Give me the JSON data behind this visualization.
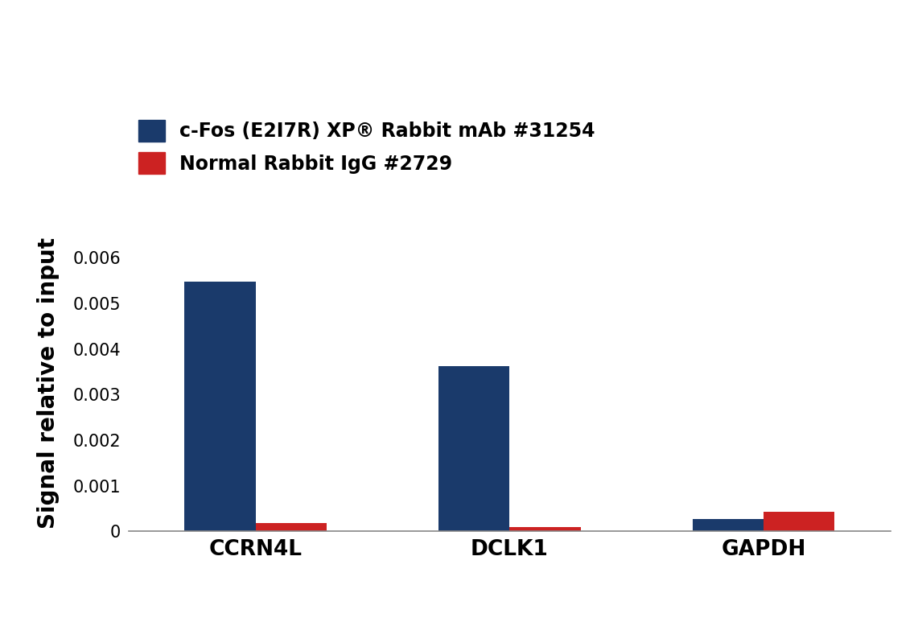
{
  "categories": [
    "CCRN4L",
    "DCLK1",
    "GAPDH"
  ],
  "blue_values": [
    0.00548,
    0.00363,
    0.000275
  ],
  "red_values": [
    0.00018,
    0.000105,
    0.000435
  ],
  "blue_color": "#1a3a6b",
  "red_color": "#cc2222",
  "ylabel": "Signal relative to input",
  "ylim": [
    0,
    0.0065
  ],
  "yticks": [
    0,
    0.001,
    0.002,
    0.003,
    0.004,
    0.005,
    0.006
  ],
  "legend_label_blue": "c-Fos (E2I7R) XP® Rabbit mAb #31254",
  "legend_label_red": "Normal Rabbit IgG #2729",
  "bar_width": 0.28,
  "background_color": "#ffffff"
}
